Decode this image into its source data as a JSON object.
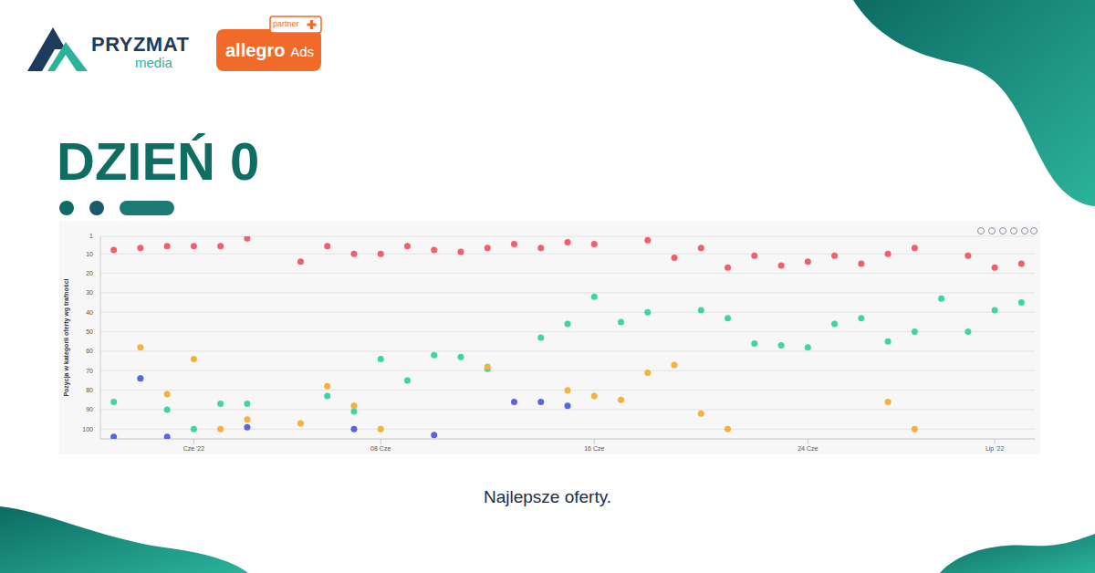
{
  "header": {
    "logo": "PRYZMAT",
    "logo_sub": "media",
    "badge": "allegro",
    "badge_sub": "Ads",
    "badge_tag": "partner"
  },
  "heading": "DZIEŃ 0",
  "caption": "Najlepsze oferty.",
  "chart_data": {
    "type": "scatter",
    "y_label": "Pozycja w kategorii oferty wg trafności",
    "xlim": [
      -2.5,
      32.5
    ],
    "xticks": [
      {
        "value": 1,
        "label": "Cze '22"
      },
      {
        "value": 8,
        "label": "08 Cze"
      },
      {
        "value": 16,
        "label": "16 Cze"
      },
      {
        "value": 24,
        "label": "24 Cze"
      },
      {
        "value": 31,
        "label": "Lip '22"
      }
    ],
    "ylim": [
      1,
      105
    ],
    "yticks": [
      1,
      10,
      20,
      30,
      40,
      50,
      60,
      70,
      80,
      90,
      100
    ],
    "grid": true,
    "series": [
      {
        "color": "#f25f6b",
        "x": [
          -2,
          -1,
          0,
          1,
          2,
          3,
          5,
          6,
          7,
          8,
          9,
          10,
          11,
          12,
          13,
          14,
          15,
          16,
          18,
          19,
          20,
          21,
          22,
          23,
          24,
          25,
          26,
          27,
          28,
          30,
          31,
          32
        ],
        "values": [
          8,
          7,
          6,
          6,
          6,
          2,
          14,
          6,
          10,
          10,
          6,
          8,
          9,
          7,
          5,
          7,
          4,
          5,
          3,
          12,
          7,
          17,
          11,
          16,
          14,
          11,
          15,
          10,
          7,
          11,
          17,
          15
        ]
      },
      {
        "color": "#3dd6a0",
        "x": [
          -2,
          -1,
          0,
          1,
          2,
          3,
          6,
          7,
          8,
          9,
          10,
          11,
          12,
          14,
          15,
          16,
          17,
          18,
          20,
          21,
          22,
          23,
          24,
          25,
          26,
          27,
          28,
          29,
          30,
          31,
          32
        ],
        "values": [
          86,
          74,
          90,
          100,
          87,
          87,
          83,
          91,
          64,
          75,
          62,
          63,
          69,
          53,
          46,
          32,
          45,
          40,
          39,
          43,
          56,
          57,
          58,
          46,
          43,
          55,
          50,
          33,
          50,
          39,
          35
        ]
      },
      {
        "color": "#f6b03c",
        "x": [
          -1,
          0,
          1,
          2,
          3,
          5,
          6,
          7,
          8,
          12,
          15,
          16,
          17,
          18,
          19,
          20,
          21,
          27,
          28
        ],
        "values": [
          58,
          82,
          64,
          100,
          95,
          97,
          78,
          88,
          100,
          68,
          80,
          83,
          85,
          71,
          67,
          92,
          100,
          86,
          100
        ]
      },
      {
        "color": "#5a63e6",
        "x": [
          -2,
          -1,
          0,
          3,
          7,
          10,
          13,
          14,
          15
        ],
        "values": [
          104,
          74,
          104,
          99,
          100,
          103,
          86,
          86,
          88
        ]
      }
    ]
  }
}
